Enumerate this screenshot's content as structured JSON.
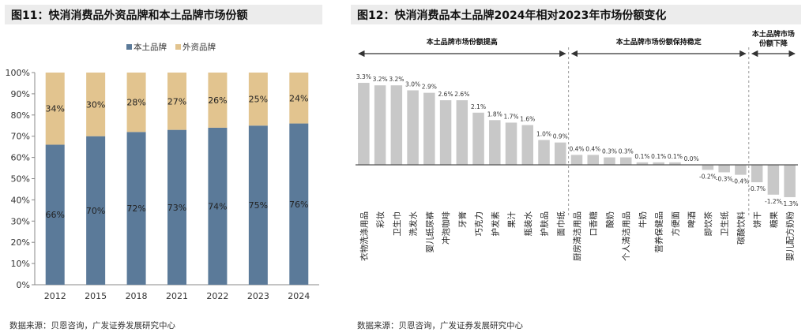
{
  "colors": {
    "domestic": "#5b7a99",
    "foreign": "#e2c48f",
    "change_bar": "#c8c8c8",
    "title_bg": "#ececec"
  },
  "chart_data": [
    {
      "type": "bar",
      "stacked": true,
      "title": "图11：快消消费品外资品牌和本土品牌市场份额",
      "legend": [
        "本土品牌",
        "外资品牌"
      ],
      "legend_position": "top-right",
      "categories": [
        "2012",
        "2015",
        "2018",
        "2021",
        "2022",
        "2023",
        "2024"
      ],
      "series": [
        {
          "name": "本土品牌",
          "values": [
            66,
            70,
            72,
            73,
            74,
            75,
            76
          ],
          "labels": [
            "66%",
            "70%",
            "72%",
            "73%",
            "74%",
            "75%",
            "76%"
          ]
        },
        {
          "name": "外资品牌",
          "values": [
            34,
            30,
            28,
            27,
            26,
            25,
            24
          ],
          "labels": [
            "34%",
            "30%",
            "28%",
            "27%",
            "26%",
            "25%",
            "24%"
          ]
        }
      ],
      "ylim": [
        0,
        100
      ],
      "yticks": [
        "0%",
        "10%",
        "20%",
        "30%",
        "40%",
        "50%",
        "60%",
        "70%",
        "80%",
        "90%",
        "100%"
      ],
      "grid": false,
      "source": "数据来源：贝恩咨询，广发证券发展研究中心"
    },
    {
      "type": "bar",
      "title": "图12：快消消费品本土品牌2024年相对2023年市场份额变化",
      "categories": [
        "衣物洗涤用品",
        "彩妆",
        "卫生巾",
        "洗发水",
        "婴儿纸尿裤",
        "冲泡咖啡",
        "牙膏",
        "巧克力",
        "护发素",
        "果汁",
        "瓶装水",
        "护肤品",
        "面巾纸",
        "厨房清洁用品",
        "口香糖",
        "酸奶",
        "个人清洁用品",
        "牛奶",
        "营养保健品",
        "方便面",
        "啤酒",
        "即饮茶",
        "卫生纸",
        "碳酸饮料",
        "饼干",
        "糖果",
        "婴儿配方奶粉"
      ],
      "values": [
        3.3,
        3.2,
        3.2,
        3.0,
        2.9,
        2.6,
        2.6,
        2.1,
        1.8,
        1.7,
        1.6,
        1.0,
        0.9,
        0.4,
        0.4,
        0.3,
        0.3,
        0.1,
        0.1,
        0.1,
        0.0,
        -0.2,
        -0.3,
        -0.4,
        -0.7,
        -1.2,
        -1.3
      ],
      "labels": [
        "3.3%",
        "3.2%",
        "3.2%",
        "3.0%",
        "2.9%",
        "2.6%",
        "2.6%",
        "2.1%",
        "1.8%",
        "1.7%",
        "1.6%",
        "1.0%",
        "0.9%",
        "0.4%",
        "0.4%",
        "0.3%",
        "0.3%",
        "0.1%",
        "0.1%",
        "0.1%",
        "0.0%",
        "-0.2%",
        "-0.3%",
        "-0.4%",
        "-0.7%",
        "-1.2%",
        "-1.3%"
      ],
      "groups": [
        {
          "label": "本土品牌市场份额提高",
          "count": 13
        },
        {
          "label": "本土品牌市场份额保持稳定",
          "count": 11
        },
        {
          "label": "本土品牌市场份额下降",
          "count": 3
        }
      ],
      "source": "数据来源：贝恩咨询，广发证券发展研究中心"
    }
  ]
}
